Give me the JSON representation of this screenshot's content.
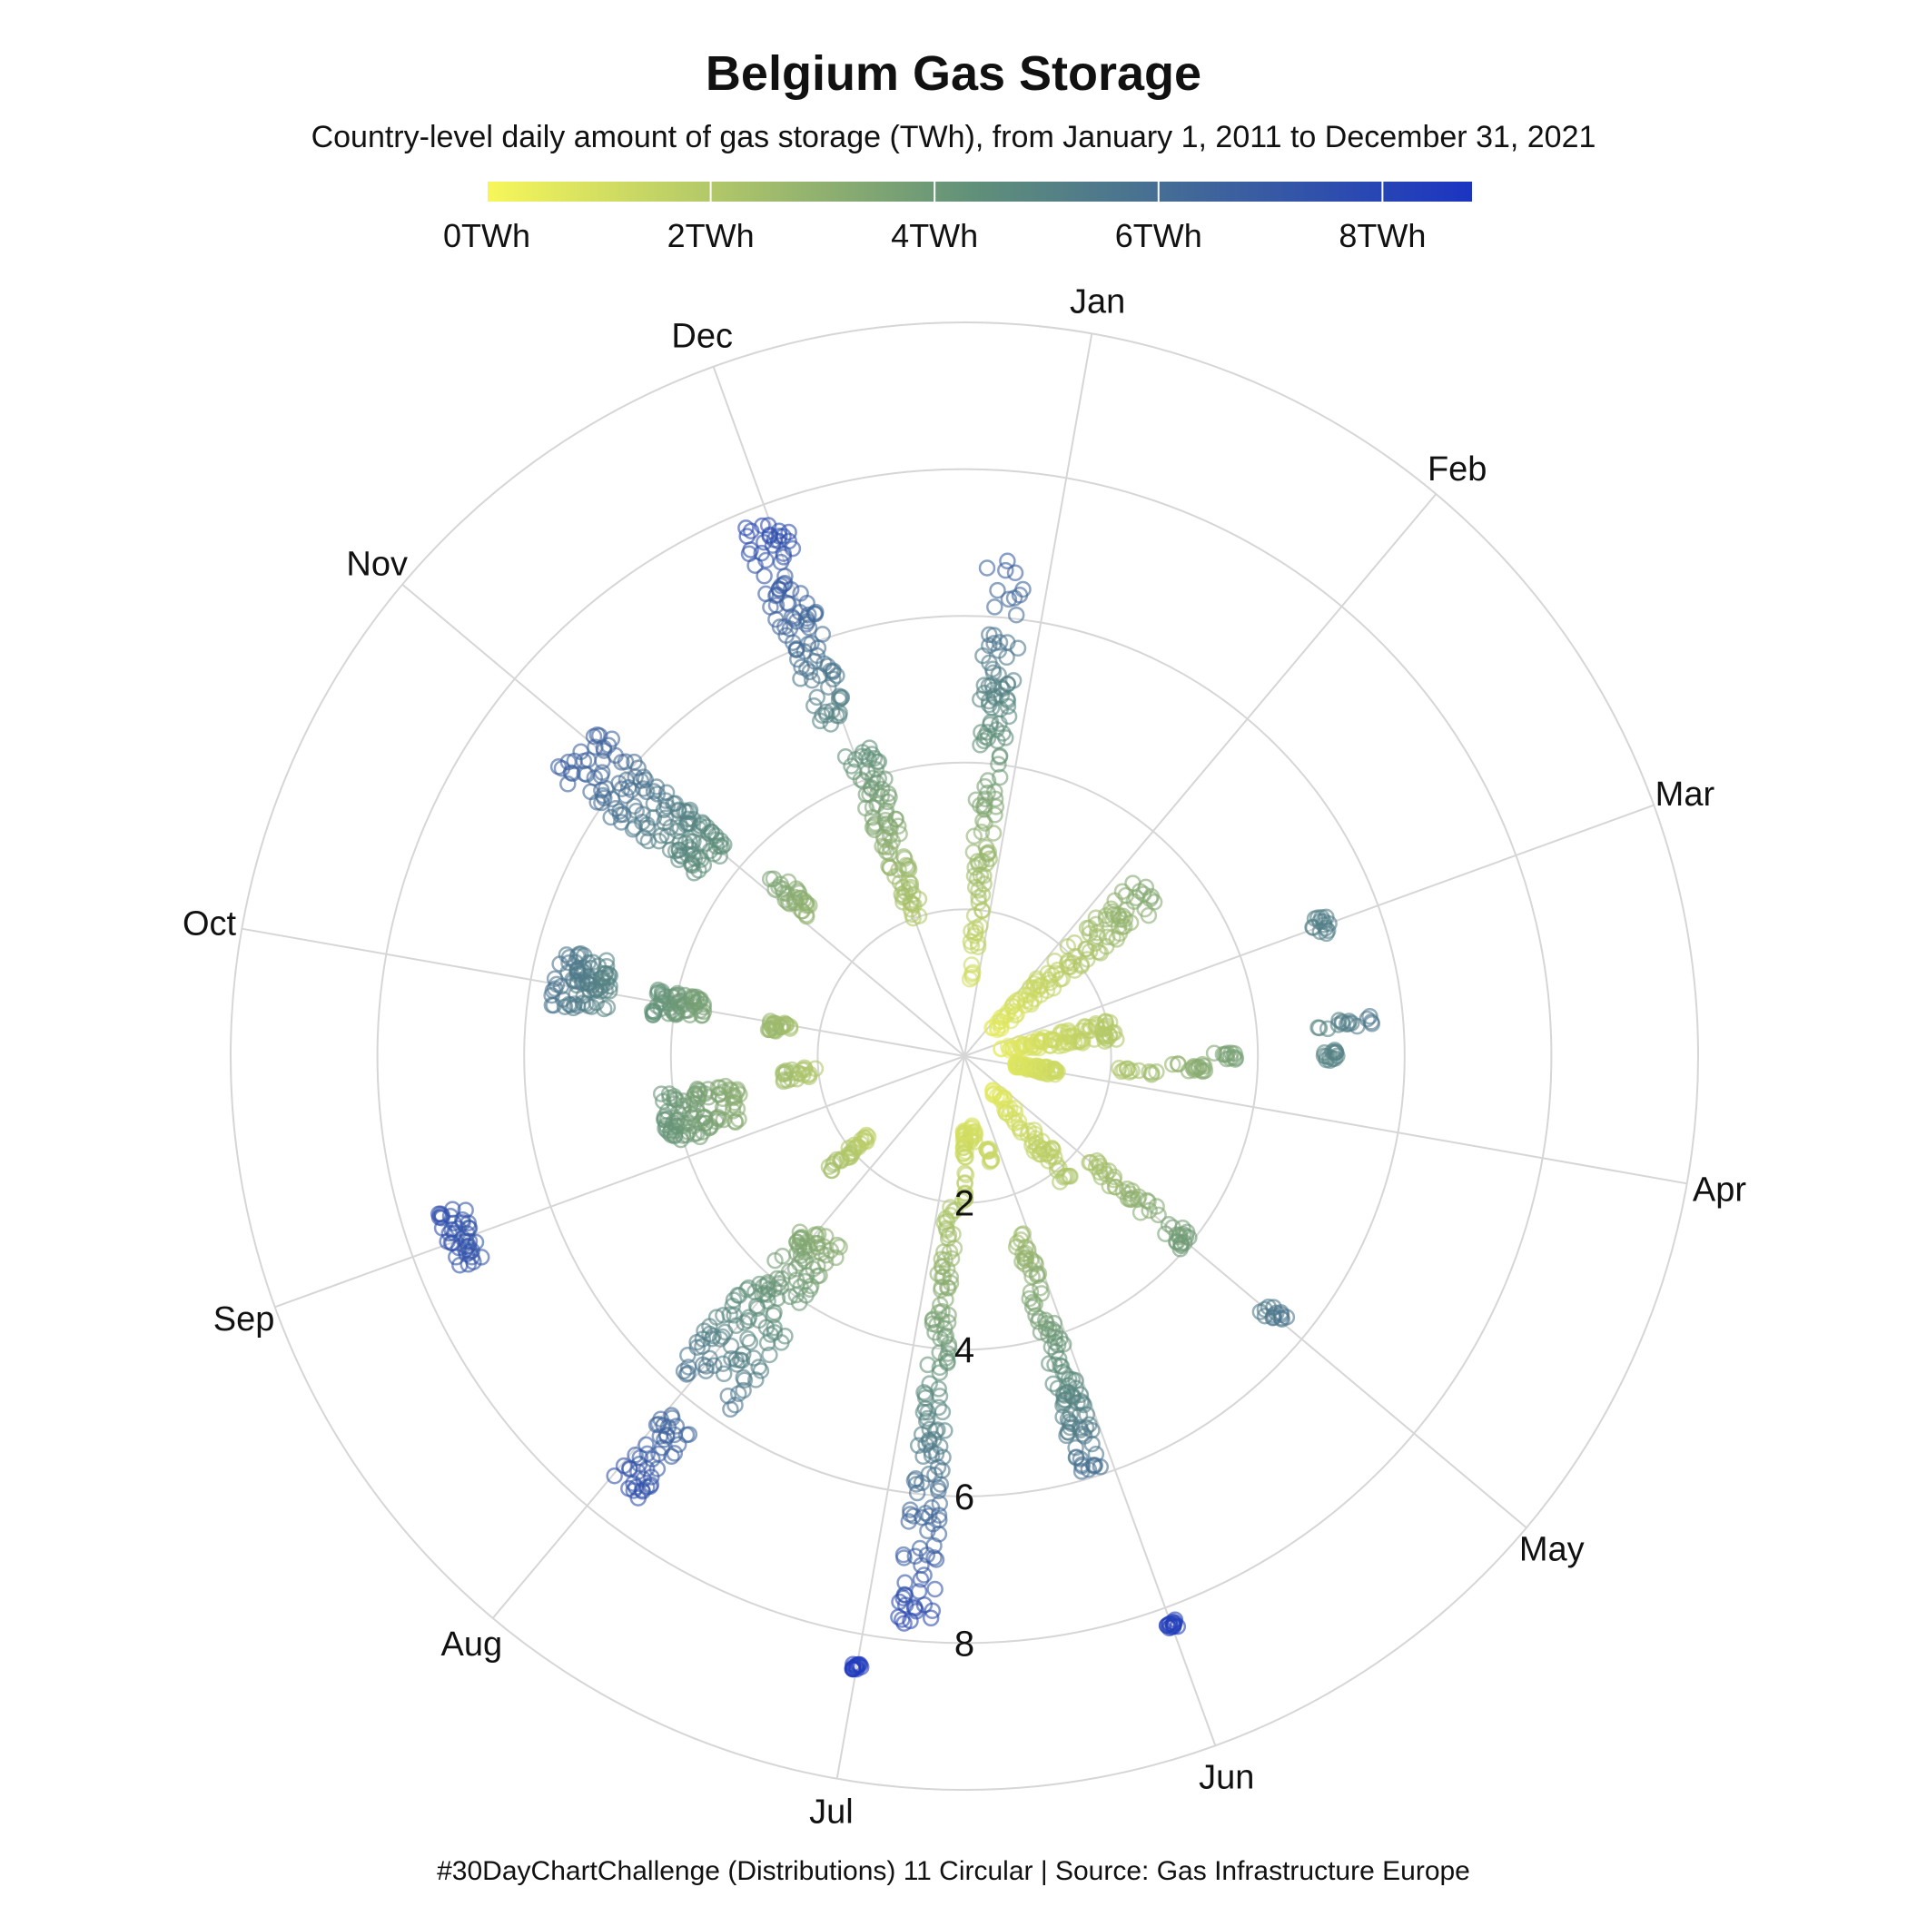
{
  "title": "Belgium Gas Storage",
  "subtitle": "Country-level daily amount of gas storage (TWh), from January 1, 2011 to December 31, 2021",
  "caption": "#30DayChartChallenge (Distributions) 11 Circular | Source: Gas Infrastructure Europe",
  "legend": {
    "ticks": [
      "0TWh",
      "2TWh",
      "4TWh",
      "6TWh",
      "8TWh"
    ],
    "tick_values": [
      0,
      2,
      4,
      6,
      8
    ],
    "range": [
      0,
      8.8
    ],
    "color_low": "#f7f75a",
    "color_mid": "#5f8f7a",
    "color_high": "#1b34c2"
  },
  "chart_data": {
    "type": "scatter",
    "coordinate_system": "polar",
    "radial_axis": {
      "tick_labels": [
        "2",
        "4",
        "6",
        "8"
      ],
      "tick_values": [
        2,
        4,
        6,
        8
      ],
      "range": [
        0,
        10
      ]
    },
    "angular_axis": {
      "categories": [
        "Jan",
        "Feb",
        "Mar",
        "Apr",
        "May",
        "Jun",
        "Jul",
        "Aug",
        "Sep",
        "Oct",
        "Nov",
        "Dec"
      ]
    },
    "point_style": "hollow-circle",
    "grid": true,
    "series": [
      {
        "month": "Jan",
        "clusters": [
          {
            "angle": -5,
            "rmin": 1.0,
            "rmax": 6.8,
            "spread": 5,
            "n": 120
          }
        ]
      },
      {
        "month": "Feb",
        "clusters": [
          {
            "angle": 8,
            "rmin": 0.5,
            "rmax": 3.4,
            "spread": 10,
            "n": 110
          },
          {
            "angle": 30,
            "rmin": 5.0,
            "rmax": 5.3,
            "spread": 3,
            "n": 14
          }
        ]
      },
      {
        "month": "Mar",
        "clusters": [
          {
            "angle": 10,
            "rmin": 0.5,
            "rmax": 2.1,
            "spread": 8,
            "n": 90
          },
          {
            "angle": 23,
            "rmin": 2.8,
            "rmax": 3.3,
            "spread": 2,
            "n": 16
          },
          {
            "angle": 20,
            "rmin": 4.9,
            "rmax": 5.2,
            "spread": 2,
            "n": 14
          }
        ]
      },
      {
        "month": "Apr",
        "clusters": [
          {
            "angle": 0,
            "rmin": 0.7,
            "rmax": 1.3,
            "spread": 5,
            "n": 70
          },
          {
            "angle": -5,
            "rmin": 2.1,
            "rmax": 2.8,
            "spread": 1.5,
            "n": 12
          },
          {
            "angle": -10,
            "rmin": 3.4,
            "rmax": 3.7,
            "spread": 1.5,
            "n": 12
          },
          {
            "angle": -15,
            "rmin": 4.8,
            "rmax": 5.6,
            "spread": 1.5,
            "n": 16
          }
        ]
      },
      {
        "month": "May",
        "clusters": [
          {
            "angle": 10,
            "rmin": 0.6,
            "rmax": 2.3,
            "spread": 8,
            "n": 60
          },
          {
            "angle": 0,
            "rmin": 2.2,
            "rmax": 4.0,
            "spread": 4,
            "n": 50
          },
          {
            "angle": 0,
            "rmin": 5.3,
            "rmax": 5.7,
            "spread": 2,
            "n": 14
          }
        ]
      },
      {
        "month": "Jun",
        "clusters": [
          {
            "angle": 14,
            "rmin": 0.9,
            "rmax": 1.2,
            "spread": 4,
            "n": 14
          },
          {
            "angle": 6,
            "rmin": 1.3,
            "rmax": 1.5,
            "spread": 2,
            "n": 10
          },
          {
            "angle": 3,
            "rmin": 2.5,
            "rmax": 5.9,
            "spread": 4,
            "n": 110
          },
          {
            "angle": 0,
            "rmin": 8.2,
            "rmax": 8.3,
            "spread": 1,
            "n": 14
          }
        ]
      },
      {
        "month": "Jul",
        "clusters": [
          {
            "angle": -10,
            "rmin": 0.9,
            "rmax": 2.0,
            "spread": 2,
            "n": 30
          },
          {
            "angle": -5,
            "rmin": 2.0,
            "rmax": 7.9,
            "spread": 4,
            "n": 140
          },
          {
            "angle": 0,
            "rmin": 8.4,
            "rmax": 8.5,
            "spread": 1,
            "n": 14
          }
        ]
      },
      {
        "month": "Aug",
        "clusters": [
          {
            "angle": 10,
            "rmin": 1.7,
            "rmax": 2.4,
            "spread": 3,
            "n": 30
          },
          {
            "angle": -2,
            "rmin": 3.1,
            "rmax": 5.8,
            "spread": 11,
            "n": 140
          },
          {
            "angle": -2,
            "rmin": 6.3,
            "rmax": 7.5,
            "spread": 4,
            "n": 45
          }
        ]
      },
      {
        "month": "Sep",
        "clusters": [
          {
            "angle": 14,
            "rmin": 2.0,
            "rmax": 2.5,
            "spread": 4,
            "n": 22
          },
          {
            "angle": 8,
            "rmin": 3.1,
            "rmax": 4.2,
            "spread": 10,
            "n": 100
          },
          {
            "angle": 0,
            "rmin": 7.1,
            "rmax": 7.5,
            "spread": 7,
            "n": 40
          }
        ]
      },
      {
        "month": "Oct",
        "clusters": [
          {
            "angle": -1,
            "rmin": 2.4,
            "rmax": 2.7,
            "spread": 3,
            "n": 25
          },
          {
            "angle": 0,
            "rmin": 3.6,
            "rmax": 4.3,
            "spread": 5,
            "n": 60
          },
          {
            "angle": 1,
            "rmin": 4.9,
            "rmax": 5.7,
            "spread": 8,
            "n": 80
          }
        ]
      },
      {
        "month": "Nov",
        "clusters": [
          {
            "angle": 3,
            "rmin": 2.7,
            "rmax": 3.6,
            "spread": 4,
            "n": 30
          },
          {
            "angle": -2,
            "rmin": 4.3,
            "rmax": 6.8,
            "spread": 8,
            "n": 140
          }
        ]
      },
      {
        "month": "Dec",
        "clusters": [
          {
            "angle": 1,
            "rmin": 2.0,
            "rmax": 4.4,
            "spread": 6,
            "n": 90
          },
          {
            "angle": -1,
            "rmin": 4.8,
            "rmax": 7.8,
            "spread": 5,
            "n": 100
          }
        ]
      }
    ]
  }
}
